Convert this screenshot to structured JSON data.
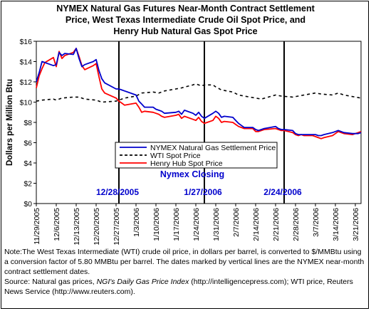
{
  "chart_data": {
    "type": "line",
    "title_lines": [
      "NYMEX Natural Gas Futures Near-Month Contract Settlement",
      "Price, West Texas Intermediate Crude Oil Spot Price, and",
      "Henry Hub Natural Gas Spot Price"
    ],
    "ylabel": "Dollars per Million Btu",
    "xlabel": "",
    "ylim": [
      0,
      16
    ],
    "y_ticks": [
      "$0",
      "$2",
      "$4",
      "$6",
      "$8",
      "$10",
      "$12",
      "$14",
      "$16"
    ],
    "x_range": [
      "2005-11-29",
      "2006-03-23"
    ],
    "x_ticks": [
      "11/29/2005",
      "12/6/2005",
      "12/13/2005",
      "12/20/2005",
      "12/27/2005",
      "1/3/2006",
      "1/10/2006",
      "1/17/2006",
      "1/24/2006",
      "1/31/2006",
      "2/7/2006",
      "2/14/2006",
      "2/21/2006",
      "2/28/2006",
      "3/7/2006",
      "3/14/2006",
      "3/21/2006"
    ],
    "grid": false,
    "legend_position": "center",
    "series": [
      {
        "name": "NYMEX Natural Gas Settlement Price",
        "color": "#0000cc",
        "dash": "solid",
        "points": [
          [
            "2005-11-29",
            12.0
          ],
          [
            "2005-11-30",
            12.9
          ],
          [
            "2005-12-01",
            14.0
          ],
          [
            "2005-12-02",
            13.9
          ],
          [
            "2005-12-05",
            13.6
          ],
          [
            "2005-12-06",
            13.7
          ],
          [
            "2005-12-07",
            14.9
          ],
          [
            "2005-12-08",
            14.6
          ],
          [
            "2005-12-09",
            14.8
          ],
          [
            "2005-12-12",
            14.7
          ],
          [
            "2005-12-13",
            15.3
          ],
          [
            "2005-12-14",
            14.3
          ],
          [
            "2005-12-15",
            13.5
          ],
          [
            "2005-12-16",
            13.7
          ],
          [
            "2005-12-19",
            14.0
          ],
          [
            "2005-12-20",
            14.2
          ],
          [
            "2005-12-21",
            13.1
          ],
          [
            "2005-12-22",
            12.3
          ],
          [
            "2005-12-23",
            11.9
          ],
          [
            "2005-12-27",
            11.3
          ],
          [
            "2005-12-28",
            11.3
          ],
          [
            "2005-12-29",
            11.2
          ],
          [
            "2005-12-30",
            11.1
          ],
          [
            "2006-01-03",
            10.7
          ],
          [
            "2006-01-04",
            10.1
          ],
          [
            "2006-01-05",
            9.8
          ],
          [
            "2006-01-06",
            9.5
          ],
          [
            "2006-01-09",
            9.5
          ],
          [
            "2006-01-10",
            9.3
          ],
          [
            "2006-01-11",
            9.2
          ],
          [
            "2006-01-12",
            9.1
          ],
          [
            "2006-01-13",
            8.9
          ],
          [
            "2006-01-17",
            9.0
          ],
          [
            "2006-01-18",
            9.1
          ],
          [
            "2006-01-19",
            8.8
          ],
          [
            "2006-01-20",
            9.2
          ],
          [
            "2006-01-23",
            8.9
          ],
          [
            "2006-01-24",
            8.7
          ],
          [
            "2006-01-25",
            9.0
          ],
          [
            "2006-01-26",
            8.6
          ],
          [
            "2006-01-27",
            8.4
          ],
          [
            "2006-01-30",
            8.9
          ],
          [
            "2006-01-31",
            9.1
          ],
          [
            "2006-02-01",
            8.9
          ],
          [
            "2006-02-02",
            8.5
          ],
          [
            "2006-02-03",
            8.6
          ],
          [
            "2006-02-06",
            8.5
          ],
          [
            "2006-02-07",
            8.2
          ],
          [
            "2006-02-08",
            7.9
          ],
          [
            "2006-02-09",
            7.7
          ],
          [
            "2006-02-10",
            7.5
          ],
          [
            "2006-02-13",
            7.5
          ],
          [
            "2006-02-14",
            7.3
          ],
          [
            "2006-02-15",
            7.2
          ],
          [
            "2006-02-16",
            7.3
          ],
          [
            "2006-02-17",
            7.4
          ],
          [
            "2006-02-21",
            7.6
          ],
          [
            "2006-02-22",
            7.4
          ],
          [
            "2006-02-23",
            7.3
          ],
          [
            "2006-02-24",
            7.3
          ],
          [
            "2006-02-27",
            7.2
          ],
          [
            "2006-02-28",
            6.9
          ],
          [
            "2006-03-01",
            6.8
          ],
          [
            "2006-03-02",
            6.8
          ],
          [
            "2006-03-03",
            6.8
          ],
          [
            "2006-03-06",
            6.8
          ],
          [
            "2006-03-07",
            6.8
          ],
          [
            "2006-03-08",
            6.7
          ],
          [
            "2006-03-09",
            6.7
          ],
          [
            "2006-03-10",
            6.8
          ],
          [
            "2006-03-13",
            7.0
          ],
          [
            "2006-03-14",
            7.1
          ],
          [
            "2006-03-15",
            7.2
          ],
          [
            "2006-03-16",
            7.1
          ],
          [
            "2006-03-17",
            7.0
          ],
          [
            "2006-03-20",
            6.9
          ],
          [
            "2006-03-21",
            6.9
          ],
          [
            "2006-03-22",
            6.9
          ],
          [
            "2006-03-23",
            7.0
          ]
        ]
      },
      {
        "name": "WTI Spot Price",
        "color": "#000000",
        "dash": "dashed",
        "points": [
          [
            "2005-11-29",
            10.1
          ],
          [
            "2005-12-01",
            10.2
          ],
          [
            "2005-12-05",
            10.3
          ],
          [
            "2005-12-06",
            10.2
          ],
          [
            "2005-12-08",
            10.4
          ],
          [
            "2005-12-12",
            10.5
          ],
          [
            "2005-12-14",
            10.5
          ],
          [
            "2005-12-16",
            10.3
          ],
          [
            "2005-12-20",
            10.2
          ],
          [
            "2005-12-22",
            10.0
          ],
          [
            "2005-12-27",
            10.1
          ],
          [
            "2005-12-28",
            10.2
          ],
          [
            "2005-12-30",
            10.4
          ],
          [
            "2006-01-03",
            10.6
          ],
          [
            "2006-01-05",
            10.9
          ],
          [
            "2006-01-09",
            11.0
          ],
          [
            "2006-01-11",
            10.9
          ],
          [
            "2006-01-13",
            11.1
          ],
          [
            "2006-01-17",
            11.3
          ],
          [
            "2006-01-19",
            11.4
          ],
          [
            "2006-01-23",
            11.7
          ],
          [
            "2006-01-24",
            11.8
          ],
          [
            "2006-01-26",
            11.6
          ],
          [
            "2006-01-27",
            11.7
          ],
          [
            "2006-01-30",
            11.7
          ],
          [
            "2006-01-31",
            11.5
          ],
          [
            "2006-02-02",
            11.2
          ],
          [
            "2006-02-06",
            11.0
          ],
          [
            "2006-02-08",
            10.7
          ],
          [
            "2006-02-10",
            10.6
          ],
          [
            "2006-02-14",
            10.4
          ],
          [
            "2006-02-16",
            10.3
          ],
          [
            "2006-02-21",
            10.7
          ],
          [
            "2006-02-23",
            10.6
          ],
          [
            "2006-02-27",
            10.5
          ],
          [
            "2006-03-01",
            10.6
          ],
          [
            "2006-03-03",
            10.7
          ],
          [
            "2006-03-07",
            10.9
          ],
          [
            "2006-03-09",
            10.8
          ],
          [
            "2006-03-13",
            10.7
          ],
          [
            "2006-03-15",
            10.9
          ],
          [
            "2006-03-17",
            10.7
          ],
          [
            "2006-03-21",
            10.5
          ],
          [
            "2006-03-23",
            10.4
          ]
        ]
      },
      {
        "name": "Henry Hub Spot Price",
        "color": "#ff0000",
        "dash": "solid",
        "points": [
          [
            "2005-11-29",
            11.4
          ],
          [
            "2005-11-30",
            12.6
          ],
          [
            "2005-12-01",
            13.3
          ],
          [
            "2005-12-02",
            13.9
          ],
          [
            "2005-12-05",
            14.4
          ],
          [
            "2005-12-06",
            13.5
          ],
          [
            "2005-12-07",
            15.0
          ],
          [
            "2005-12-08",
            14.3
          ],
          [
            "2005-12-09",
            14.6
          ],
          [
            "2005-12-12",
            14.9
          ],
          [
            "2005-12-13",
            15.3
          ],
          [
            "2005-12-14",
            14.5
          ],
          [
            "2005-12-15",
            13.6
          ],
          [
            "2005-12-16",
            13.2
          ],
          [
            "2005-12-19",
            13.6
          ],
          [
            "2005-12-20",
            13.8
          ],
          [
            "2005-12-21",
            12.5
          ],
          [
            "2005-12-22",
            11.3
          ],
          [
            "2005-12-23",
            10.9
          ],
          [
            "2005-12-27",
            10.4
          ],
          [
            "2005-12-28",
            10.1
          ],
          [
            "2005-12-29",
            9.9
          ],
          [
            "2005-12-30",
            9.7
          ],
          [
            "2006-01-03",
            9.9
          ],
          [
            "2006-01-04",
            9.5
          ],
          [
            "2006-01-05",
            9.0
          ],
          [
            "2006-01-06",
            9.1
          ],
          [
            "2006-01-09",
            9.0
          ],
          [
            "2006-01-10",
            8.9
          ],
          [
            "2006-01-11",
            8.8
          ],
          [
            "2006-01-12",
            8.6
          ],
          [
            "2006-01-13",
            8.5
          ],
          [
            "2006-01-17",
            8.7
          ],
          [
            "2006-01-18",
            8.8
          ],
          [
            "2006-01-19",
            8.4
          ],
          [
            "2006-01-20",
            8.6
          ],
          [
            "2006-01-23",
            8.3
          ],
          [
            "2006-01-24",
            8.2
          ],
          [
            "2006-01-25",
            8.5
          ],
          [
            "2006-01-26",
            8.1
          ],
          [
            "2006-01-27",
            7.9
          ],
          [
            "2006-01-30",
            8.2
          ],
          [
            "2006-01-31",
            8.6
          ],
          [
            "2006-02-01",
            8.4
          ],
          [
            "2006-02-02",
            8.0
          ],
          [
            "2006-02-03",
            8.1
          ],
          [
            "2006-02-06",
            8.0
          ],
          [
            "2006-02-07",
            7.8
          ],
          [
            "2006-02-08",
            7.6
          ],
          [
            "2006-02-09",
            7.5
          ],
          [
            "2006-02-10",
            7.4
          ],
          [
            "2006-02-13",
            7.4
          ],
          [
            "2006-02-14",
            7.1
          ],
          [
            "2006-02-15",
            7.1
          ],
          [
            "2006-02-16",
            7.2
          ],
          [
            "2006-02-17",
            7.3
          ],
          [
            "2006-02-21",
            7.4
          ],
          [
            "2006-02-22",
            7.3
          ],
          [
            "2006-02-23",
            7.2
          ],
          [
            "2006-02-24",
            7.2
          ],
          [
            "2006-02-27",
            7.0
          ],
          [
            "2006-02-28",
            6.8
          ],
          [
            "2006-03-01",
            6.7
          ],
          [
            "2006-03-02",
            6.8
          ],
          [
            "2006-03-03",
            6.7
          ],
          [
            "2006-03-06",
            6.7
          ],
          [
            "2006-03-07",
            6.6
          ],
          [
            "2006-03-08",
            6.5
          ],
          [
            "2006-03-09",
            6.4
          ],
          [
            "2006-03-10",
            6.5
          ],
          [
            "2006-03-13",
            6.7
          ],
          [
            "2006-03-14",
            6.9
          ],
          [
            "2006-03-15",
            7.1
          ],
          [
            "2006-03-16",
            7.0
          ],
          [
            "2006-03-17",
            6.9
          ],
          [
            "2006-03-20",
            6.8
          ],
          [
            "2006-03-21",
            6.9
          ],
          [
            "2006-03-22",
            7.0
          ],
          [
            "2006-03-23",
            7.1
          ]
        ]
      }
    ],
    "vertical_markers": [
      {
        "date": "2005-12-28",
        "label": "12/28/2005"
      },
      {
        "date": "2006-01-27",
        "label": "1/27/2006"
      },
      {
        "date": "2006-02-24",
        "label": "2/24/2006"
      }
    ],
    "markers_title": "Nymex Closing",
    "marker_color": "#0000cc"
  },
  "note": {
    "paragraph1": "Note:The West Texas Intermediate (WTI) crude oil price, in dollars per barrel,  is converted to $/MMBtu using a conversion factor of 5.80 MMBtu per barrel.  The dates marked by vertical lines are the NYMEX near-month contract settlement dates.",
    "source_prefix": "Source: Natural gas prices, ",
    "source_italic": "NGI's Daily Gas Price Index",
    "source_suffix": " (http://intelligencepress.com); WTI price, Reuters News Service (http://www.reuters.com)."
  }
}
